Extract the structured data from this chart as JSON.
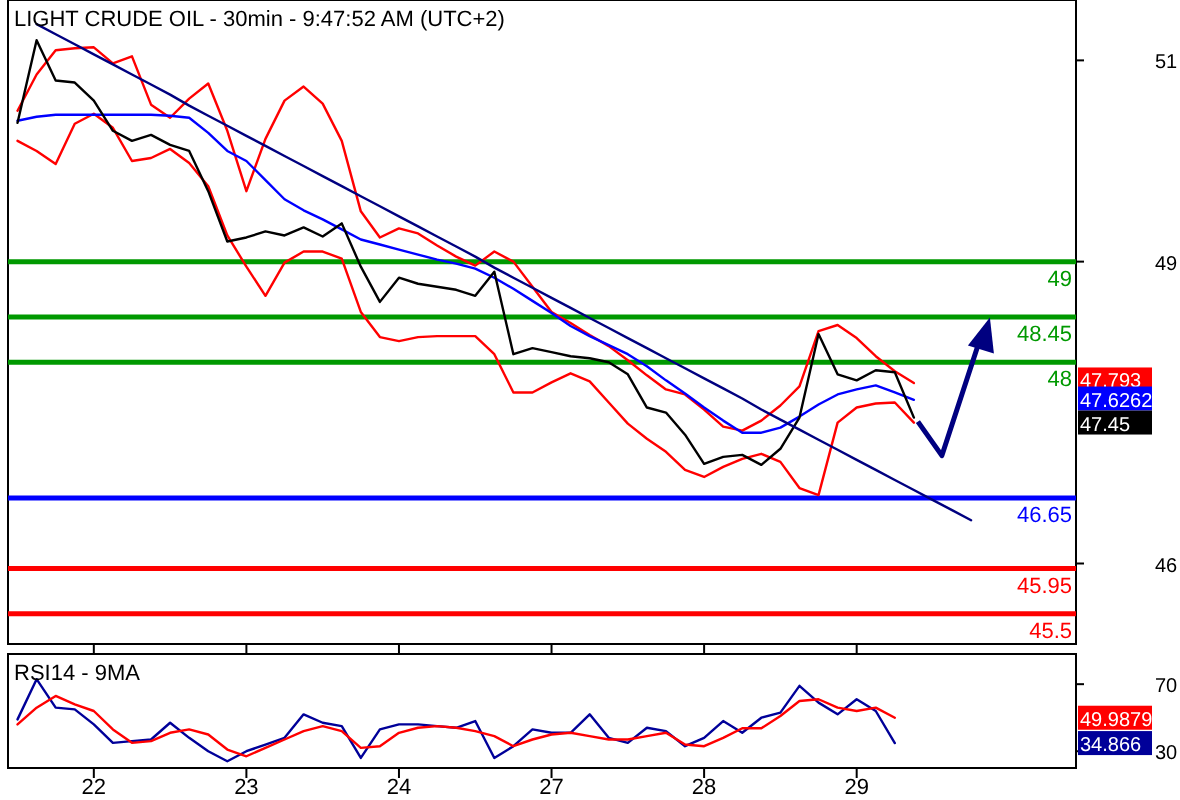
{
  "chart_data": [
    {
      "type": "line",
      "title": "LIGHT CRUDE OIL - 30min - 9:47:52 AM (UTC+2)",
      "categories": [
        null,
        null,
        null,
        null,
        "22",
        null,
        null,
        null,
        null,
        null,
        null,
        null,
        "23",
        null,
        null,
        null,
        null,
        null,
        null,
        null,
        "24",
        null,
        null,
        null,
        null,
        null,
        null,
        null,
        "27",
        null,
        null,
        null,
        null,
        null,
        null,
        null,
        "28",
        null,
        null,
        null,
        null,
        null,
        null,
        null,
        "29",
        null,
        null,
        null,
        null,
        null,
        null,
        null,
        null,
        null,
        null,
        null
      ],
      "ylim": [
        45.2,
        51.6
      ],
      "yticks": [
        46,
        49,
        51
      ],
      "tick_labels": "y",
      "grid": false,
      "marker": "none",
      "line_style": "solid",
      "series": [
        {
          "color": "#ff0000",
          "values": [
            50.5,
            50.86,
            51.1,
            51.12,
            51.13,
            50.97,
            51.04,
            50.56,
            50.43,
            50.62,
            50.77,
            50.3,
            49.7,
            50.22,
            50.6,
            50.74,
            50.57,
            50.2,
            49.5,
            49.24,
            49.33,
            49.28,
            49.16,
            49.05,
            48.96,
            49.1,
            49.0,
            48.75,
            48.5,
            48.39,
            48.27,
            48.16,
            48.02,
            47.87,
            47.73,
            47.68,
            47.53,
            47.36,
            47.32,
            47.42,
            47.57,
            47.76,
            48.31,
            48.37,
            48.24,
            48.06,
            47.91,
            47.793,
            null,
            null,
            null,
            null,
            null,
            null,
            null,
            null
          ]
        },
        {
          "color": "#ff0000",
          "values": [
            50.2,
            50.1,
            49.97,
            50.37,
            50.47,
            50.33,
            50.0,
            50.03,
            50.12,
            49.98,
            49.75,
            49.26,
            48.95,
            48.66,
            48.99,
            49.1,
            49.1,
            49.03,
            48.5,
            48.25,
            48.21,
            48.25,
            48.26,
            48.26,
            48.26,
            48.08,
            47.7,
            47.7,
            47.8,
            47.89,
            47.81,
            47.6,
            47.39,
            47.24,
            47.11,
            46.93,
            46.86,
            46.96,
            47.04,
            47.09,
            47.01,
            46.75,
            46.68,
            47.4,
            47.55,
            47.59,
            47.6,
            47.4,
            null,
            null,
            null,
            null,
            null,
            null,
            null,
            null
          ]
        },
        {
          "color": "#0000ff",
          "values": [
            50.4,
            50.44,
            50.46,
            50.46,
            50.46,
            50.46,
            50.46,
            50.46,
            50.45,
            50.43,
            50.28,
            50.1,
            50.0,
            49.81,
            49.62,
            49.51,
            49.42,
            49.32,
            49.22,
            49.17,
            49.12,
            49.07,
            49.02,
            48.98,
            48.93,
            48.84,
            48.73,
            48.61,
            48.49,
            48.36,
            48.26,
            48.17,
            48.08,
            47.96,
            47.82,
            47.69,
            47.55,
            47.42,
            47.3,
            47.3,
            47.35,
            47.46,
            47.58,
            47.68,
            47.73,
            47.77,
            47.7,
            47.6262,
            null,
            null,
            null,
            null,
            null,
            null,
            null,
            null
          ]
        },
        {
          "color": "#000000",
          "values": [
            50.38,
            51.2,
            50.8,
            50.78,
            50.6,
            50.3,
            50.2,
            50.26,
            50.16,
            50.1,
            49.7,
            49.2,
            49.24,
            49.3,
            49.26,
            49.34,
            49.25,
            49.38,
            48.95,
            48.6,
            48.84,
            48.78,
            48.75,
            48.72,
            48.66,
            48.9,
            48.08,
            48.14,
            48.1,
            48.06,
            48.04,
            48.0,
            47.88,
            47.55,
            47.5,
            47.28,
            46.99,
            47.06,
            47.08,
            46.98,
            47.14,
            47.45,
            48.28,
            47.88,
            47.82,
            47.92,
            47.9,
            47.45,
            null,
            null,
            null,
            null,
            null,
            null,
            null,
            null
          ]
        },
        {
          "color": "#000080",
          "values": [
            null,
            51.36,
            51.26,
            51.16,
            51.06,
            50.96,
            50.86,
            50.76,
            50.66,
            50.55,
            50.45,
            50.35,
            50.25,
            50.15,
            50.05,
            49.95,
            49.85,
            49.75,
            49.65,
            49.55,
            49.45,
            49.35,
            49.25,
            49.15,
            49.05,
            48.94,
            48.84,
            48.74,
            48.64,
            48.54,
            48.44,
            48.34,
            48.24,
            48.14,
            48.04,
            47.94,
            47.84,
            47.74,
            47.64,
            47.53,
            47.43,
            47.33,
            47.23,
            47.13,
            47.03,
            46.93,
            46.83,
            46.73,
            46.63,
            46.53,
            46.43,
            null,
            null,
            null,
            null,
            null
          ]
        }
      ],
      "ref_lines": [
        {
          "axis": "y",
          "value": 49,
          "label": "49",
          "color": "#009900"
        },
        {
          "axis": "y",
          "value": 48.45,
          "label": "48.45",
          "color": "#009900"
        },
        {
          "axis": "y",
          "value": 48,
          "label": "48",
          "color": "#009900"
        },
        {
          "axis": "y",
          "value": 46.65,
          "label": "46.65",
          "color": "#0000ff"
        },
        {
          "axis": "y",
          "value": 45.95,
          "label": "45.95",
          "color": "#ff0000"
        },
        {
          "axis": "y",
          "value": 45.5,
          "label": "45.5",
          "color": "#ff0000"
        }
      ],
      "annotations": [
        "47.793",
        "47.6262",
        "47.45"
      ]
    },
    {
      "type": "line",
      "title": "RSI14 - 9MA",
      "categories": [
        null,
        null,
        null,
        null,
        "22",
        null,
        null,
        null,
        null,
        null,
        null,
        null,
        "23",
        null,
        null,
        null,
        null,
        null,
        null,
        null,
        "24",
        null,
        null,
        null,
        null,
        null,
        null,
        null,
        "27",
        null,
        null,
        null,
        null,
        null,
        null,
        null,
        "28",
        null,
        null,
        null,
        null,
        null,
        null,
        null,
        "29",
        null,
        null,
        null,
        null,
        null,
        null,
        null,
        null,
        null,
        null,
        null
      ],
      "ylim": [
        20,
        88
      ],
      "yticks": [
        30,
        70
      ],
      "grid": false,
      "marker": "none",
      "line_style": "solid",
      "series": [
        {
          "color": "#000099",
          "values": [
            49,
            73,
            56,
            55,
            46,
            35,
            36,
            37,
            47,
            38,
            30,
            24,
            30,
            34,
            38,
            52,
            47,
            45,
            26,
            43,
            46,
            46,
            45,
            44,
            48,
            26,
            33,
            43,
            41,
            41,
            52,
            38,
            35,
            44,
            42,
            33,
            38,
            48,
            41,
            50,
            53,
            69,
            59,
            52,
            61,
            54,
            34.866,
            null,
            null,
            null,
            null,
            null,
            null,
            null,
            null,
            null
          ]
        },
        {
          "color": "#ff0000",
          "values": [
            46,
            56,
            63,
            58,
            54,
            43,
            35,
            36,
            41,
            43,
            40,
            31,
            27,
            32,
            37,
            42,
            45,
            42,
            32,
            33,
            41,
            44,
            45,
            44,
            42,
            39,
            33,
            37,
            40,
            41,
            39,
            37,
            37,
            39,
            41,
            34,
            33,
            38,
            43.7,
            43.7,
            51,
            60,
            61,
            56,
            54,
            56,
            49.9879,
            null,
            null,
            null,
            null,
            null,
            null,
            null,
            null,
            null
          ]
        }
      ],
      "annotations": [
        "49.9879",
        "34.866"
      ]
    }
  ]
}
